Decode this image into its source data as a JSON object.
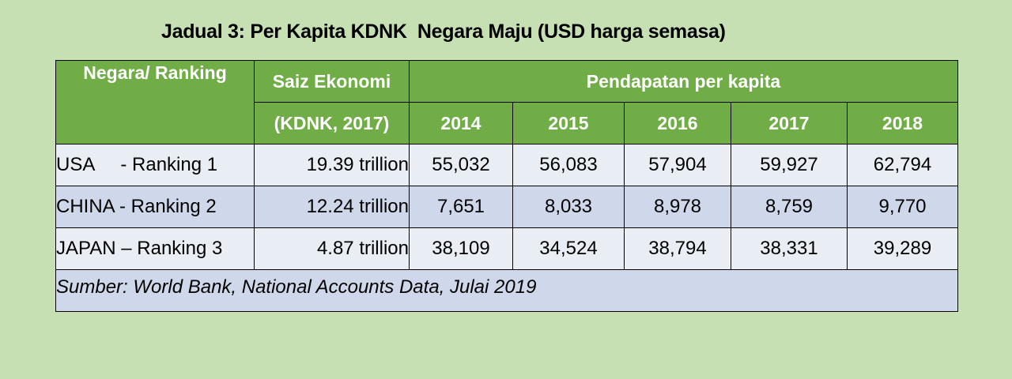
{
  "title": "Jadual 3: Per Kapita KDNK  Negara Maju (USD harga semasa)",
  "header": {
    "country": "Negara/ Ranking",
    "economy_size_line1": "Saiz Ekonomi",
    "economy_size_line2": "(KDNK, 2017)",
    "income": "Pendapatan per kapita",
    "years": [
      "2014",
      "2015",
      "2016",
      "2017",
      "2018"
    ]
  },
  "rows": [
    {
      "country": "USA     - Ranking 1",
      "economy_size": "19.39 trillion",
      "values": [
        "55,032",
        "56,083",
        "57,904",
        "59,927",
        "62,794"
      ]
    },
    {
      "country": "CHINA - Ranking 2",
      "economy_size": "12.24 trillion",
      "values": [
        "7,651",
        "8,033",
        "8,978",
        "8,759",
        "9,770"
      ]
    },
    {
      "country": "JAPAN – Ranking 3",
      "economy_size": "4.87 trillion",
      "values": [
        "38,109",
        "34,524",
        "38,794",
        "38,331",
        "39,289"
      ]
    }
  ],
  "source": "Sumber: World Bank, National Accounts Data, Julai 2019",
  "colors": {
    "background": "#c6e0b4",
    "header": "#70ad47",
    "row_light": "#e9edf4",
    "row_dark": "#cfd8ea"
  }
}
